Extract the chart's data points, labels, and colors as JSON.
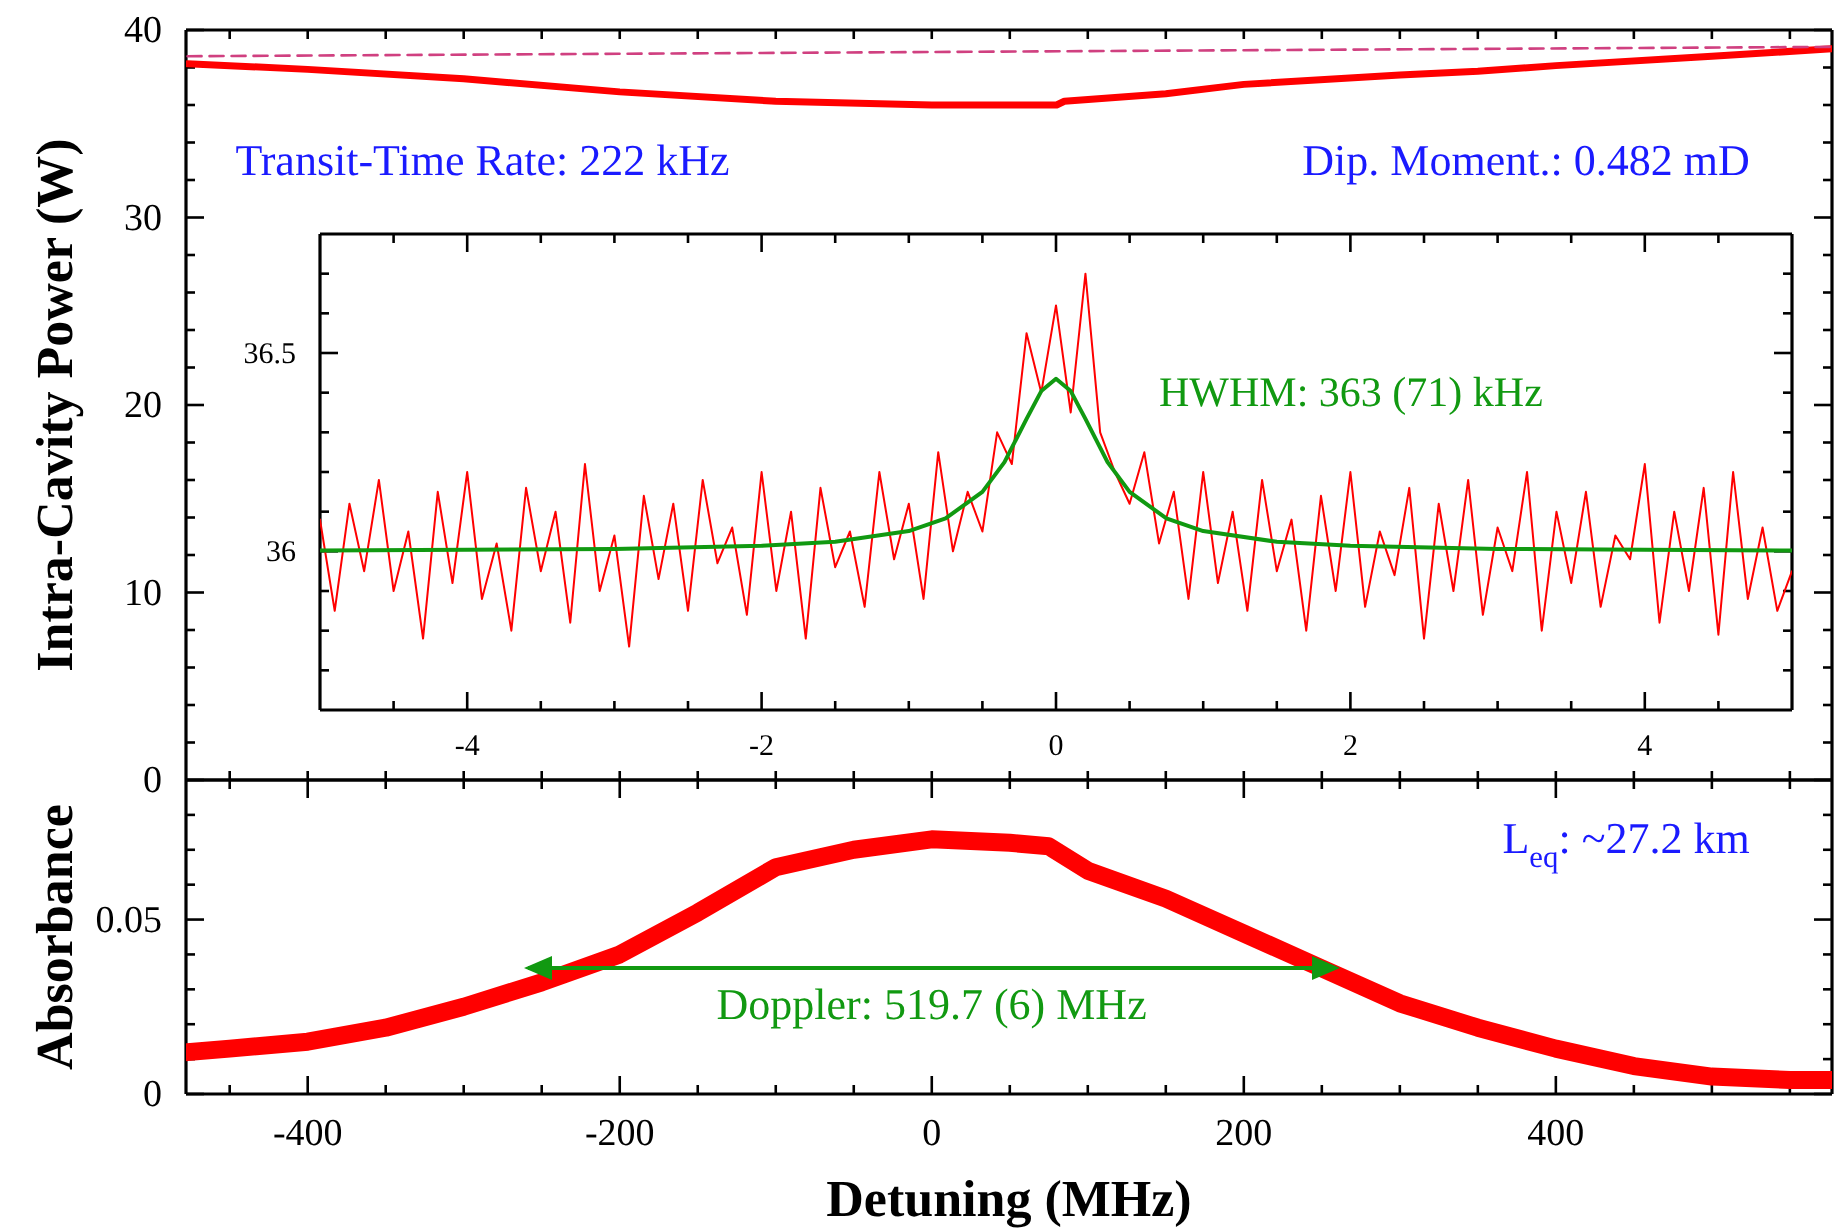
{
  "chart_data": [
    {
      "type": "line",
      "ylabel": "Intra-Cavity Power (W)",
      "tick_labels": "y",
      "xlim": [
        -478,
        577
      ],
      "ylim": [
        0,
        40
      ],
      "xticks": [
        {
          "value": -450,
          "label": null
        },
        {
          "value": -400,
          "label": null
        },
        {
          "value": -350,
          "label": null
        },
        {
          "value": -300,
          "label": null
        },
        {
          "value": -250,
          "label": null
        },
        {
          "value": -200,
          "label": null
        },
        {
          "value": -150,
          "label": null
        },
        {
          "value": -100,
          "label": null
        },
        {
          "value": -50,
          "label": null
        },
        {
          "value": 0,
          "label": null
        },
        {
          "value": 50,
          "label": null
        },
        {
          "value": 100,
          "label": null
        },
        {
          "value": 150,
          "label": null
        },
        {
          "value": 200,
          "label": null
        },
        {
          "value": 250,
          "label": null
        },
        {
          "value": 300,
          "label": null
        },
        {
          "value": 350,
          "label": null
        },
        {
          "value": 400,
          "label": null
        },
        {
          "value": 450,
          "label": null
        },
        {
          "value": 500,
          "label": null
        },
        {
          "value": 550,
          "label": null
        }
      ],
      "yticks": [
        0,
        {
          "value": 2,
          "label": null
        },
        {
          "value": 4,
          "label": null
        },
        {
          "value": 6,
          "label": null
        },
        {
          "value": 8,
          "label": null
        },
        10,
        {
          "value": 12,
          "label": null
        },
        {
          "value": 14,
          "label": null
        },
        {
          "value": 16,
          "label": null
        },
        {
          "value": 18,
          "label": null
        },
        20,
        {
          "value": 22,
          "label": null
        },
        {
          "value": 24,
          "label": null
        },
        {
          "value": 26,
          "label": null
        },
        {
          "value": 28,
          "label": null
        },
        30,
        {
          "value": 32,
          "label": null
        },
        {
          "value": 34,
          "label": null
        },
        {
          "value": 36,
          "label": null
        },
        {
          "value": 38,
          "label": null
        },
        40
      ],
      "annotations": [
        "Transit-Time Rate: 222 kHz",
        "Dip. Moment.: 0.482 mD"
      ],
      "series": [
        {
          "color": "#ff0000",
          "x": [
            -477,
            -400,
            -300,
            -200,
            -100,
            0,
            80,
            85,
            150,
            200,
            300,
            350,
            400,
            500,
            577
          ],
          "values": [
            38.2,
            37.9,
            37.4,
            36.7,
            36.2,
            36.0,
            36.0,
            36.2,
            36.6,
            37.1,
            37.6,
            37.8,
            38.1,
            38.6,
            39.0
          ]
        },
        {
          "color": "#d04080",
          "line_style": "dashed",
          "x": [
            -477,
            577
          ],
          "values": [
            38.6,
            39.1
          ]
        }
      ]
    },
    {
      "type": "line",
      "tick_labels": "xy",
      "xlim": [
        -5,
        5
      ],
      "ylim": [
        35.6,
        36.8
      ],
      "xticks": [
        {
          "value": -4.5,
          "label": null
        },
        -4,
        {
          "value": -3.5,
          "label": null
        },
        {
          "value": -3,
          "label": null
        },
        {
          "value": -2.5,
          "label": null
        },
        -2,
        {
          "value": -1.5,
          "label": null
        },
        {
          "value": -1,
          "label": null
        },
        {
          "value": -0.5,
          "label": null
        },
        0,
        {
          "value": 0.5,
          "label": null
        },
        {
          "value": 1,
          "label": null
        },
        {
          "value": 1.5,
          "label": null
        },
        2,
        {
          "value": 2.5,
          "label": null
        },
        {
          "value": 3,
          "label": null
        },
        {
          "value": 3.5,
          "label": null
        },
        4,
        {
          "value": 4.5,
          "label": null
        }
      ],
      "yticks": [
        {
          "value": 35.7,
          "label": null
        },
        {
          "value": 35.8,
          "label": null
        },
        {
          "value": 35.9,
          "label": null
        },
        36,
        {
          "value": 36.1,
          "label": null
        },
        {
          "value": 36.2,
          "label": null
        },
        {
          "value": 36.3,
          "label": null
        },
        {
          "value": 36.4,
          "label": null
        },
        36.5,
        {
          "value": 36.6,
          "label": null
        },
        {
          "value": 36.7,
          "label": null
        }
      ],
      "annotations": [
        "HWHM: 363 (71) kHz"
      ],
      "series": [
        {
          "color": "#ff0000",
          "x": [
            -5,
            -4.9,
            -4.8,
            -4.7,
            -4.6,
            -4.5,
            -4.4,
            -4.3,
            -4.2,
            -4.1,
            -4,
            -3.9,
            -3.8,
            -3.7,
            -3.6,
            -3.5,
            -3.4,
            -3.3,
            -3.2,
            -3.1,
            -3,
            -2.9,
            -2.8,
            -2.7,
            -2.6,
            -2.5,
            -2.4,
            -2.3,
            -2.2,
            -2.1,
            -2,
            -1.9,
            -1.8,
            -1.7,
            -1.6,
            -1.5,
            -1.4,
            -1.3,
            -1.2,
            -1.1,
            -1,
            -0.9,
            -0.8,
            -0.7,
            -0.6,
            -0.5,
            -0.4,
            -0.3,
            -0.2,
            -0.1,
            0,
            0.1,
            0.2,
            0.3,
            0.4,
            0.5,
            0.6,
            0.7,
            0.8,
            0.9,
            1,
            1.1,
            1.2,
            1.3,
            1.4,
            1.5,
            1.6,
            1.7,
            1.8,
            1.9,
            2,
            2.1,
            2.2,
            2.3,
            2.4,
            2.5,
            2.6,
            2.7,
            2.8,
            2.9,
            3,
            3.1,
            3.2,
            3.3,
            3.4,
            3.5,
            3.6,
            3.7,
            3.8,
            3.9,
            4,
            4.1,
            4.2,
            4.3,
            4.4,
            4.5,
            4.6,
            4.7,
            4.8,
            4.9,
            5
          ],
          "values": [
            36.08,
            35.85,
            36.12,
            35.95,
            36.18,
            35.9,
            36.05,
            35.78,
            36.15,
            35.92,
            36.2,
            35.88,
            36.02,
            35.8,
            36.16,
            35.95,
            36.1,
            35.82,
            36.22,
            35.9,
            36.04,
            35.76,
            36.14,
            35.93,
            36.12,
            35.85,
            36.18,
            35.97,
            36.06,
            35.84,
            36.2,
            35.9,
            36.1,
            35.78,
            36.16,
            35.96,
            36.05,
            35.86,
            36.2,
            35.98,
            36.12,
            35.88,
            36.25,
            36.0,
            36.15,
            36.05,
            36.3,
            36.22,
            36.55,
            36.4,
            36.62,
            36.35,
            36.7,
            36.3,
            36.2,
            36.12,
            36.25,
            36.02,
            36.15,
            35.88,
            36.2,
            35.92,
            36.1,
            35.85,
            36.18,
            35.95,
            36.08,
            35.8,
            36.14,
            35.9,
            36.2,
            35.86,
            36.05,
            35.94,
            36.16,
            35.78,
            36.12,
            35.9,
            36.18,
            35.84,
            36.06,
            35.95,
            36.2,
            35.8,
            36.1,
            35.92,
            36.15,
            35.86,
            36.04,
            35.98,
            36.22,
            35.82,
            36.1,
            35.9,
            36.16,
            35.79,
            36.2,
            35.88,
            36.06,
            35.85,
            35.95
          ]
        },
        {
          "color": "#119911",
          "x": [
            -5,
            -4,
            -3,
            -2,
            -1.5,
            -1,
            -0.75,
            -0.5,
            -0.35,
            -0.2,
            -0.1,
            0,
            0.1,
            0.2,
            0.35,
            0.5,
            0.75,
            1,
            1.5,
            2,
            3,
            4,
            5
          ],
          "values": [
            36.002,
            36.004,
            36.006,
            36.014,
            36.024,
            36.051,
            36.083,
            36.15,
            36.225,
            36.334,
            36.404,
            36.435,
            36.404,
            36.334,
            36.225,
            36.15,
            36.083,
            36.051,
            36.024,
            36.014,
            36.006,
            36.004,
            36.002
          ]
        }
      ]
    },
    {
      "type": "line",
      "xlabel": "Detuning (MHz)",
      "ylabel": "Absorbance",
      "xlim": [
        -478,
        577
      ],
      "ylim": [
        0,
        0.09
      ],
      "xticks": [
        {
          "value": -450,
          "label": null
        },
        -400,
        {
          "value": -350,
          "label": null
        },
        {
          "value": -300,
          "label": null
        },
        {
          "value": -250,
          "label": null
        },
        -200,
        {
          "value": -150,
          "label": null
        },
        {
          "value": -100,
          "label": null
        },
        {
          "value": -50,
          "label": null
        },
        0,
        {
          "value": 50,
          "label": null
        },
        {
          "value": 100,
          "label": null
        },
        {
          "value": 150,
          "label": null
        },
        200,
        {
          "value": 250,
          "label": null
        },
        {
          "value": 300,
          "label": null
        },
        {
          "value": 350,
          "label": null
        },
        400,
        {
          "value": 450,
          "label": null
        },
        {
          "value": 500,
          "label": null
        },
        {
          "value": 550,
          "label": null
        }
      ],
      "yticks": [
        0,
        {
          "value": 0.01,
          "label": null
        },
        {
          "value": 0.02,
          "label": null
        },
        {
          "value": 0.03,
          "label": null
        },
        {
          "value": 0.04,
          "label": null
        },
        0.05,
        {
          "value": 0.06,
          "label": null
        },
        {
          "value": 0.07,
          "label": null
        },
        {
          "value": 0.08,
          "label": null
        }
      ],
      "annotations": [
        "L$_{eq}$: ~27.2 km",
        "Doppler: 519.7 (6) MHz"
      ],
      "series": [
        {
          "color": "#ff0000",
          "x": [
            -477,
            -450,
            -400,
            -350,
            -300,
            -250,
            -200,
            -150,
            -100,
            -50,
            0,
            50,
            75,
            100,
            150,
            200,
            250,
            300,
            350,
            400,
            450,
            500,
            550,
            577
          ],
          "values": [
            0.012,
            0.013,
            0.015,
            0.019,
            0.025,
            0.032,
            0.04,
            0.052,
            0.065,
            0.07,
            0.073,
            0.072,
            0.071,
            0.064,
            0.056,
            0.046,
            0.036,
            0.026,
            0.019,
            0.013,
            0.008,
            0.005,
            0.004,
            0.004
          ]
        }
      ]
    }
  ]
}
